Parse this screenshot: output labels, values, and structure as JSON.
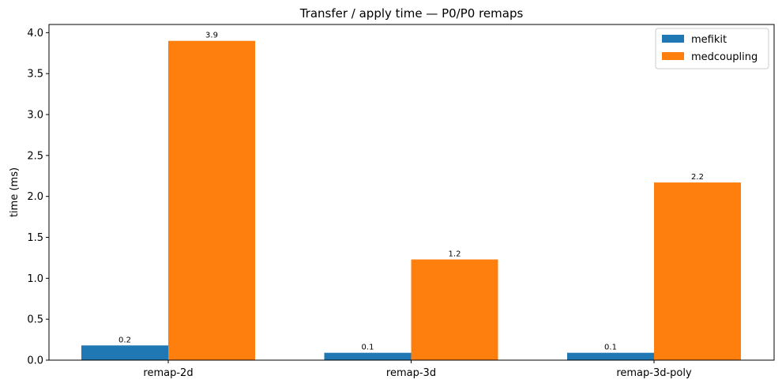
{
  "chart_data": {
    "type": "bar",
    "title": "Transfer / apply time — P0/P0 remaps",
    "xlabel": "",
    "ylabel": "time (ms)",
    "ylim": [
      0,
      4.1
    ],
    "yticks": [
      0.0,
      0.5,
      1.0,
      1.5,
      2.0,
      2.5,
      3.0,
      3.5,
      4.0
    ],
    "ytick_labels": [
      "0.0",
      "0.5",
      "1.0",
      "1.5",
      "2.0",
      "2.5",
      "3.0",
      "3.5",
      "4.0"
    ],
    "categories": [
      "remap-2d",
      "remap-3d",
      "remap-3d-poly"
    ],
    "series": [
      {
        "name": "mefikit",
        "color": "#1f77b4",
        "values": [
          0.18,
          0.09,
          0.09
        ],
        "labels": [
          "0.2",
          "0.1",
          "0.1"
        ]
      },
      {
        "name": "medcoupling",
        "color": "#ff7f0e",
        "values": [
          3.9,
          1.23,
          2.17
        ],
        "labels": [
          "3.9",
          "1.2",
          "2.2"
        ]
      }
    ],
    "legend_position": "top-right",
    "grid": false
  }
}
